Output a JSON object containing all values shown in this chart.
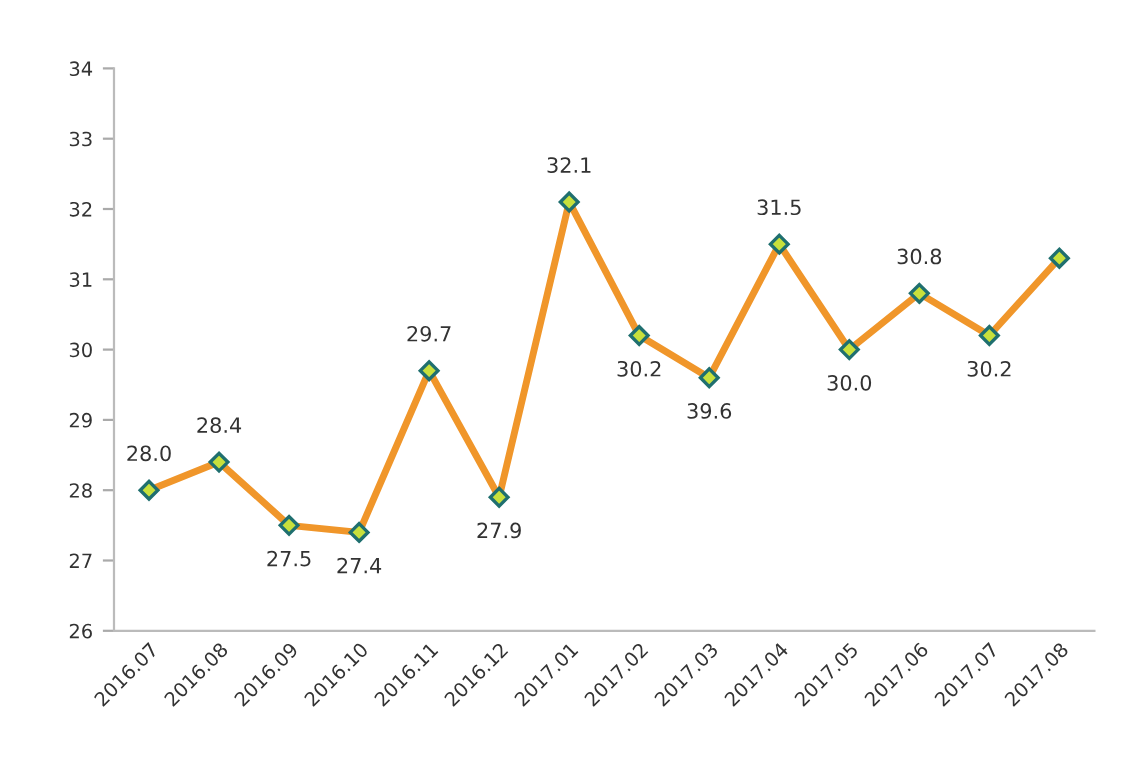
{
  "chart_data": {
    "type": "line",
    "categories": [
      "2016.07",
      "2016.08",
      "2016.09",
      "2016.10",
      "2016.11",
      "2016.12",
      "2017.01",
      "2017.02",
      "2017.03",
      "2017.04",
      "2017.05",
      "2017.06",
      "2017.07",
      "2017.08"
    ],
    "series": [
      {
        "color": "#f0962a",
        "values": [
          28.0,
          28.4,
          27.5,
          27.4,
          29.7,
          27.9,
          32.1,
          30.2,
          29.6,
          31.5,
          30.0,
          30.8,
          30.2,
          31.3
        ],
        "value_labels": [
          "28.0",
          "28.4",
          "27.5",
          "27.4",
          "29.7",
          "27.9",
          "32.1",
          "30.2",
          null,
          "31.5",
          "30.0",
          "30.8",
          "30.2",
          null
        ]
      }
    ],
    "annotations": [
      {
        "text": "39.6",
        "x": "2017.03",
        "y": 29.6
      }
    ],
    "ylim": [
      26,
      34
    ],
    "yticks": [
      26,
      27,
      28,
      29,
      30,
      31,
      32,
      33,
      34
    ],
    "marker": "diamond",
    "grid": false,
    "legend": false
  }
}
